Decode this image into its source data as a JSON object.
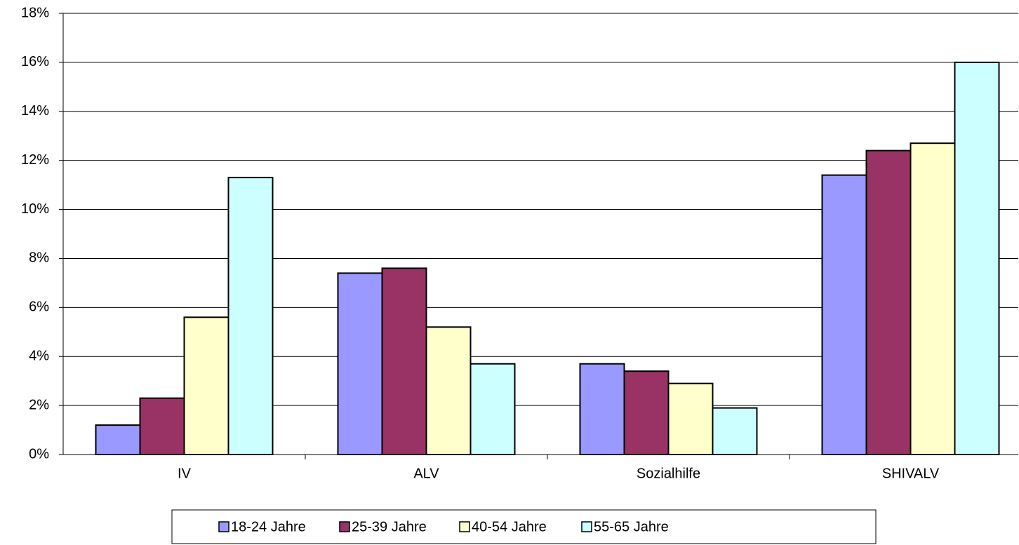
{
  "chart_data": {
    "type": "bar",
    "categories": [
      "IV",
      "ALV",
      "Sozialhilfe",
      "SHIVALV"
    ],
    "series": [
      {
        "name": "18-24 Jahre",
        "color": "#9999FF",
        "values": [
          1.2,
          7.4,
          3.7,
          11.4
        ]
      },
      {
        "name": "25-39 Jahre",
        "color": "#993366",
        "values": [
          2.3,
          7.6,
          3.4,
          12.4
        ]
      },
      {
        "name": "40-54 Jahre",
        "color": "#FFFFCC",
        "values": [
          5.6,
          5.2,
          2.9,
          12.7
        ]
      },
      {
        "name": "55-65 Jahre",
        "color": "#CCFFFF",
        "values": [
          11.3,
          3.7,
          1.9,
          16.0
        ]
      }
    ],
    "ylim": [
      0,
      18
    ],
    "yticks": [
      {
        "value": 0,
        "label": "0%"
      },
      {
        "value": 2,
        "label": "2%"
      },
      {
        "value": 4,
        "label": "4%"
      },
      {
        "value": 6,
        "label": "6%"
      },
      {
        "value": 8,
        "label": "8%"
      },
      {
        "value": 10,
        "label": "10%"
      },
      {
        "value": 12,
        "label": "12%"
      },
      {
        "value": 14,
        "label": "14%"
      },
      {
        "value": 16,
        "label": "16%"
      },
      {
        "value": 18,
        "label": "18%"
      }
    ],
    "grid": true,
    "legend": "bottom"
  }
}
